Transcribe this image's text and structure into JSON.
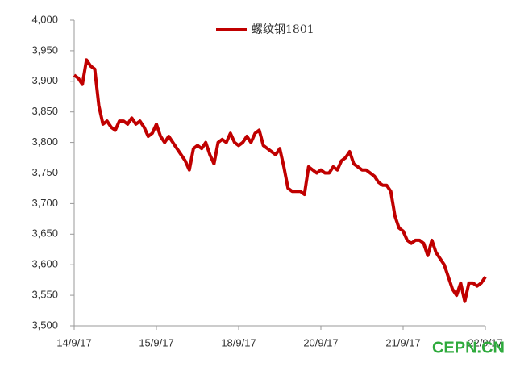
{
  "chart_data": {
    "type": "line",
    "categories": [
      "14/9/17",
      null,
      null,
      null,
      null,
      null,
      null,
      null,
      null,
      null,
      null,
      null,
      null,
      null,
      null,
      null,
      null,
      null,
      null,
      null,
      "15/9/17",
      null,
      null,
      null,
      null,
      null,
      null,
      null,
      null,
      null,
      null,
      null,
      null,
      null,
      null,
      null,
      null,
      null,
      null,
      null,
      "18/9/17",
      null,
      null,
      null,
      null,
      null,
      null,
      null,
      null,
      null,
      null,
      null,
      null,
      null,
      null,
      null,
      null,
      null,
      null,
      null,
      "20/9/17",
      null,
      null,
      null,
      null,
      null,
      null,
      null,
      null,
      null,
      null,
      null,
      null,
      null,
      null,
      null,
      null,
      null,
      null,
      null,
      "21/9/17",
      null,
      null,
      null,
      null,
      null,
      null,
      null,
      null,
      null,
      null,
      null,
      null,
      null,
      null,
      null,
      null,
      null,
      null,
      null,
      "22/9/17"
    ],
    "series": [
      {
        "name": "螺纹钢1801",
        "color": "#c00000",
        "values": [
          3910,
          3905,
          3895,
          3935,
          3925,
          3920,
          3860,
          3830,
          3835,
          3825,
          3820,
          3835,
          3835,
          3830,
          3840,
          3830,
          3835,
          3825,
          3810,
          3815,
          3830,
          3810,
          3800,
          3810,
          3800,
          3790,
          3780,
          3770,
          3755,
          3790,
          3795,
          3790,
          3800,
          3780,
          3765,
          3800,
          3805,
          3800,
          3815,
          3800,
          3795,
          3800,
          3810,
          3800,
          3815,
          3820,
          3795,
          3790,
          3785,
          3780,
          3790,
          3760,
          3725,
          3720,
          3720,
          3720,
          3715,
          3760,
          3755,
          3750,
          3755,
          3750,
          3750,
          3760,
          3755,
          3770,
          3775,
          3785,
          3765,
          3760,
          3755,
          3755,
          3750,
          3745,
          3735,
          3730,
          3730,
          3720,
          3680,
          3660,
          3655,
          3640,
          3635,
          3640,
          3640,
          3635,
          3615,
          3640,
          3620,
          3610,
          3600,
          3580,
          3560,
          3550,
          3570,
          3540,
          3570,
          3570,
          3565,
          3570,
          3580
        ]
      }
    ],
    "ylim": [
      3500,
      4000
    ],
    "yticks": [
      {
        "value": 3500,
        "label": "3,500"
      },
      {
        "value": 3550,
        "label": "3,550"
      },
      {
        "value": 3600,
        "label": "3,600"
      },
      {
        "value": 3650,
        "label": "3,650"
      },
      {
        "value": 3700,
        "label": "3,700"
      },
      {
        "value": 3750,
        "label": "3,750"
      },
      {
        "value": 3800,
        "label": "3,800"
      },
      {
        "value": 3850,
        "label": "3,850"
      },
      {
        "value": 3900,
        "label": "3,900"
      },
      {
        "value": 3950,
        "label": "3,950"
      },
      {
        "value": 4000,
        "label": "4,000"
      }
    ],
    "legend": "top",
    "grid": false,
    "annotations": [
      "CEPN.CN"
    ]
  }
}
